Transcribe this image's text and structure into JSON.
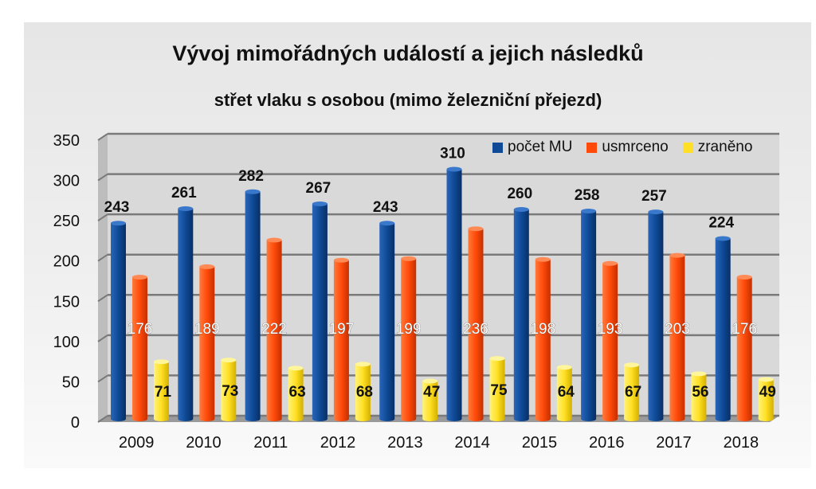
{
  "chart_data": {
    "type": "bar",
    "title": "Vývoj mimořádných událostí a jejich následků",
    "subtitle": "střet vlaku s osobou (mimo železniční přejezd)",
    "categories": [
      "2009",
      "2010",
      "2011",
      "2012",
      "2013",
      "2014",
      "2015",
      "2016",
      "2017",
      "2018"
    ],
    "series": [
      {
        "name": "počet MU",
        "color": "#0e4a96",
        "values": [
          243,
          261,
          282,
          267,
          243,
          310,
          260,
          258,
          257,
          224
        ]
      },
      {
        "name": "usmrceno",
        "color": "#ff4a0a",
        "values": [
          176,
          189,
          222,
          197,
          199,
          236,
          198,
          193,
          203,
          176
        ]
      },
      {
        "name": "zraněno",
        "color": "#ffe024",
        "values": [
          71,
          73,
          63,
          68,
          47,
          75,
          64,
          67,
          56,
          49
        ]
      }
    ],
    "ylim": [
      0,
      350
    ],
    "yticks": [
      0,
      50,
      100,
      150,
      200,
      250,
      300,
      350
    ],
    "grid": true,
    "legend_position": "top-right"
  }
}
